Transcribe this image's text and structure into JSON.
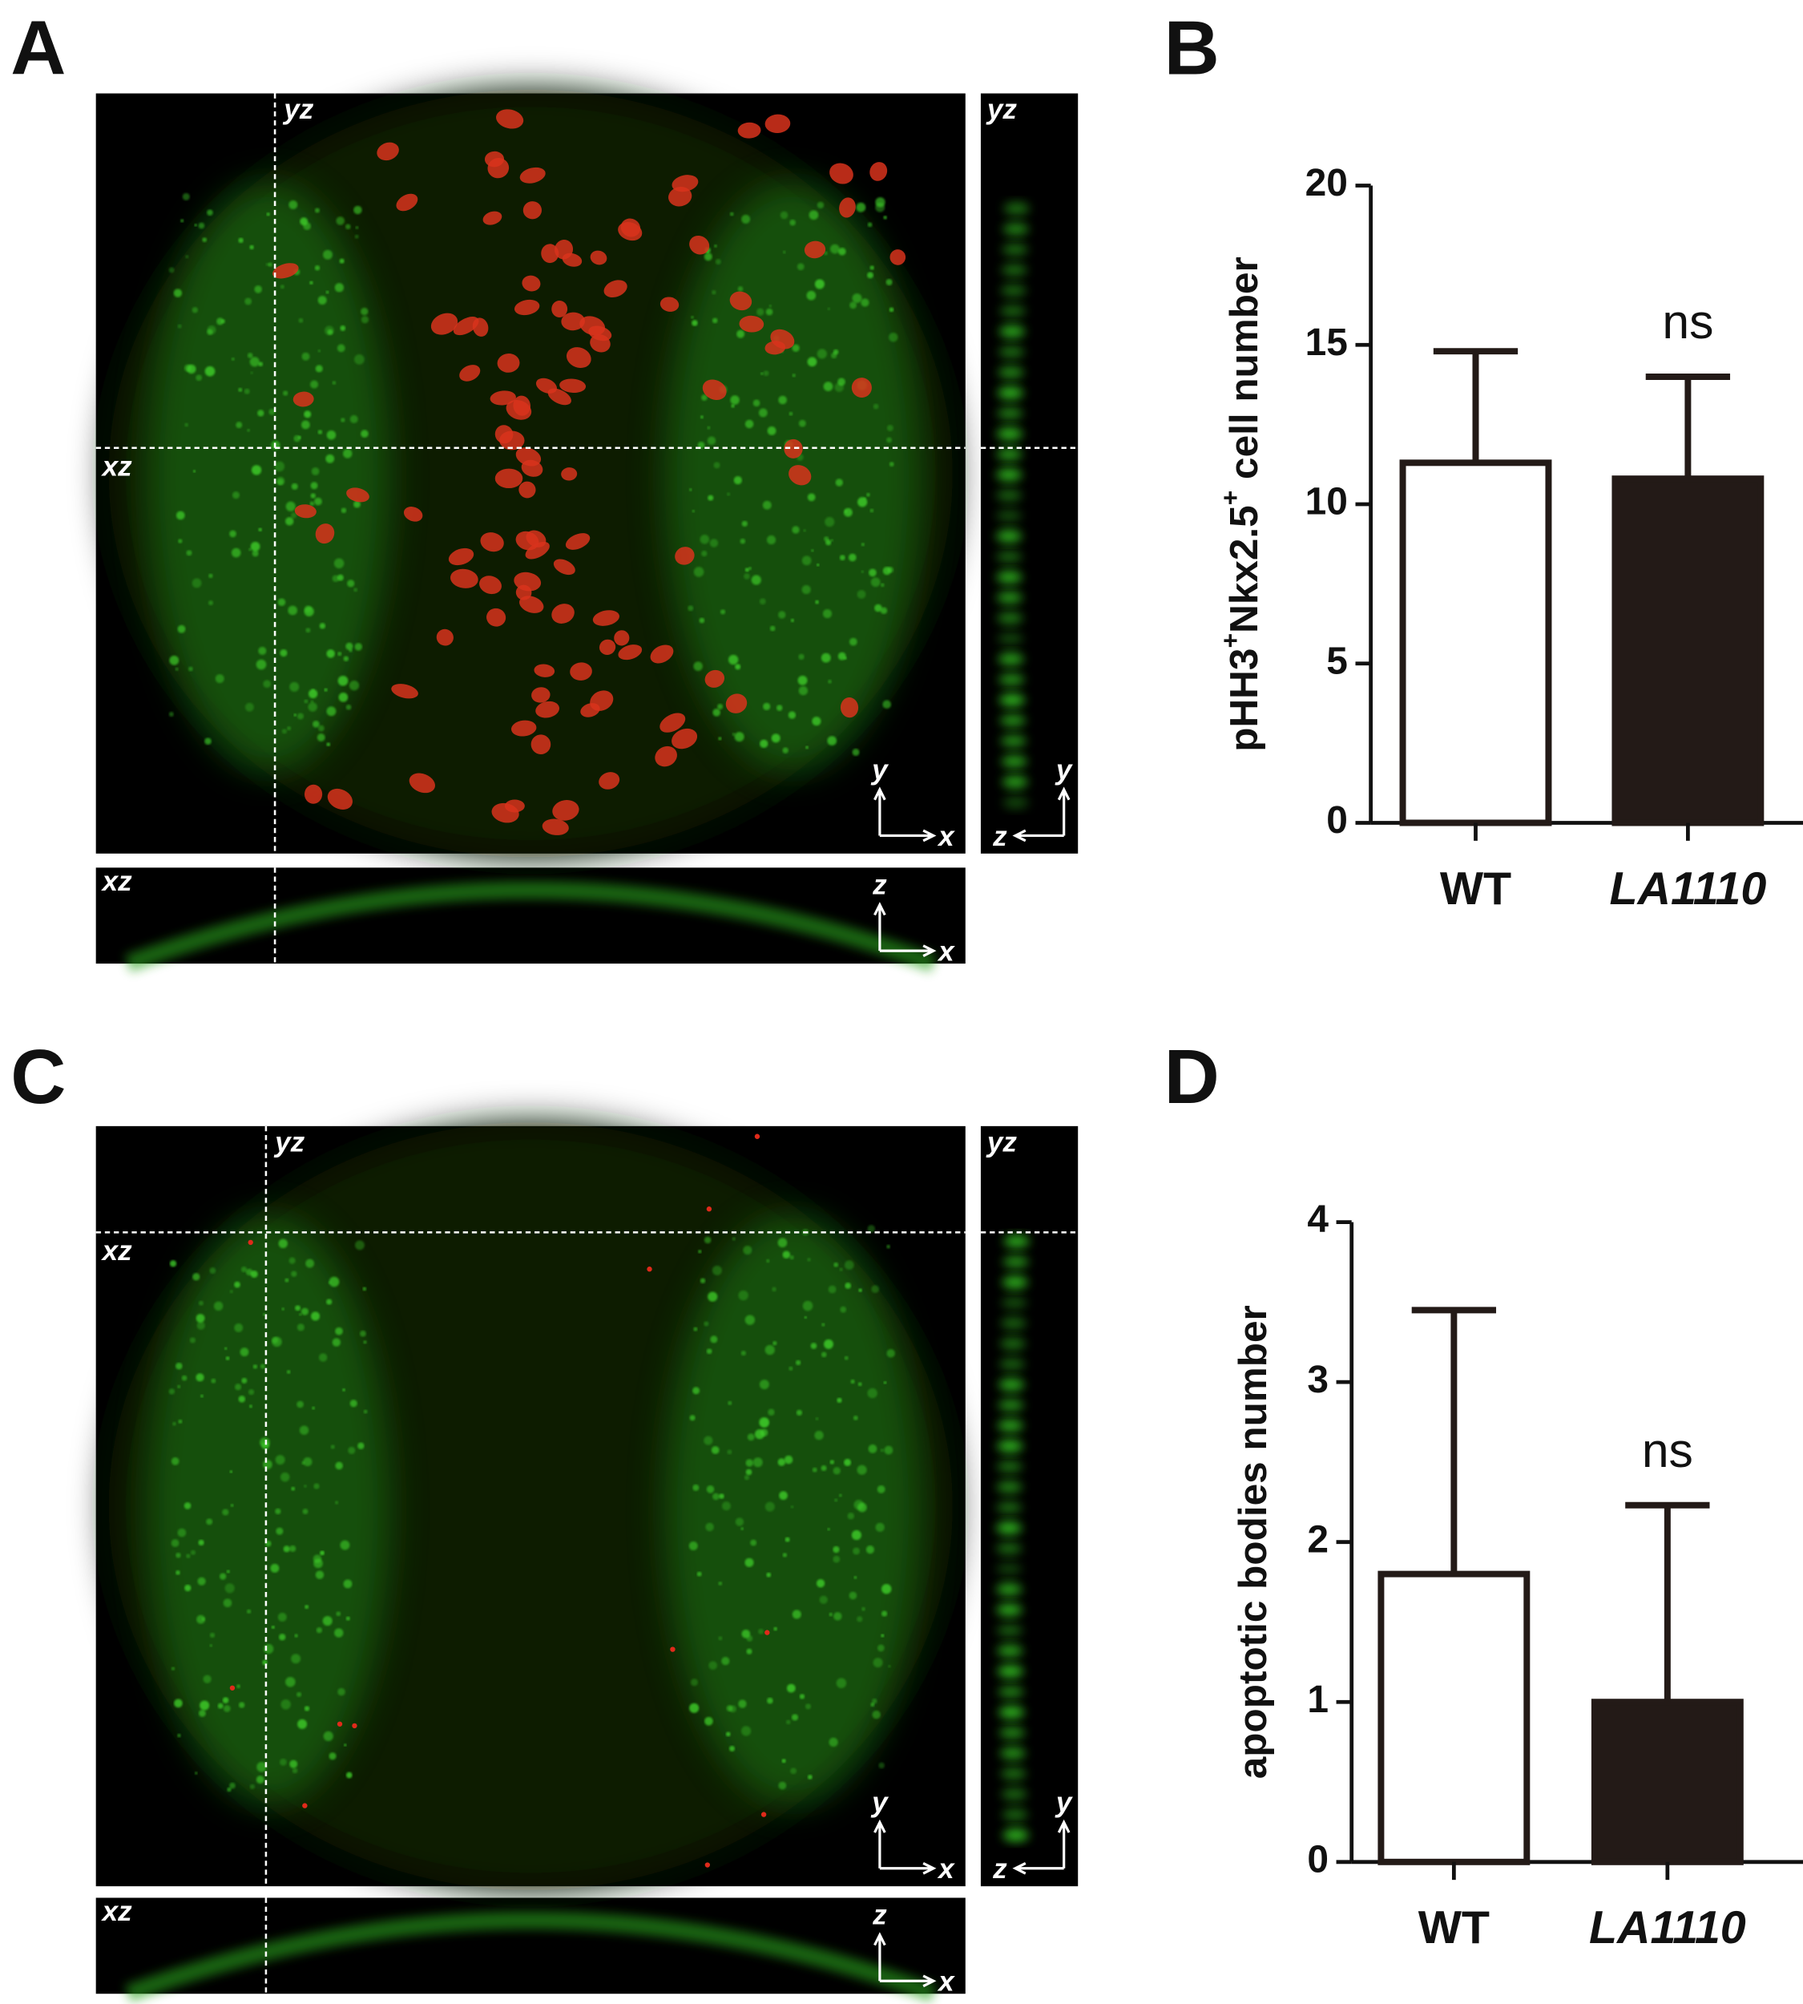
{
  "panels": [
    {
      "label": "A",
      "view_labels": [
        "yz",
        "xz",
        "y",
        "x",
        "z"
      ]
    },
    {
      "label": "B"
    },
    {
      "label": "C",
      "view_labels": [
        "yz",
        "xz",
        "y",
        "x",
        "z"
      ]
    },
    {
      "label": "D"
    }
  ],
  "chart_data": [
    {
      "type": "bar",
      "ylabel": [
        {
          "text": "pHH3"
        },
        {
          "text": "+",
          "sup": true
        },
        {
          "text": "Nkx2.5"
        },
        {
          "text": "+",
          "sup": true
        },
        {
          "text": " cell number"
        }
      ],
      "categories": [
        "WT",
        "LA1110"
      ],
      "category_styles": [
        "normal",
        "italic"
      ],
      "values": [
        11.3,
        10.8
      ],
      "errors": [
        3.5,
        3.2
      ],
      "colors": [
        "#ffffff",
        "#231a17"
      ],
      "annotations": [
        null,
        "ns"
      ],
      "ylim": [
        0,
        20
      ],
      "yticks": [
        0,
        5,
        10,
        15,
        20
      ]
    },
    {
      "type": "bar",
      "ylabel": [
        {
          "text": "apoptotic bodies number"
        }
      ],
      "categories": [
        "WT",
        "LA1110"
      ],
      "category_styles": [
        "normal",
        "italic"
      ],
      "values": [
        1.8,
        1.0
      ],
      "errors": [
        1.65,
        1.23
      ],
      "colors": [
        "#ffffff",
        "#231a17"
      ],
      "annotations": [
        null,
        "ns"
      ],
      "ylim": [
        0,
        4
      ],
      "yticks": [
        0,
        1,
        2,
        3,
        4
      ]
    }
  ]
}
